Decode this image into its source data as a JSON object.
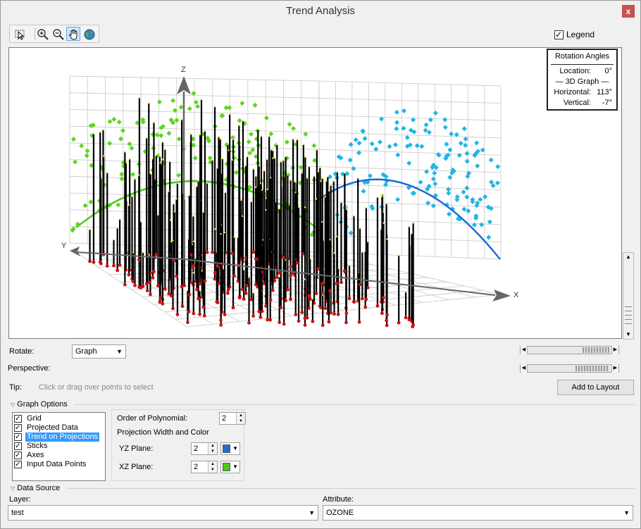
{
  "window": {
    "title": "Trend Analysis",
    "close_label": "x"
  },
  "toolbar": {
    "tools": [
      {
        "name": "select-tool",
        "icon": "pointer-icon"
      },
      {
        "name": "zoom-in-tool",
        "icon": "zoom-in-icon"
      },
      {
        "name": "zoom-out-tool",
        "icon": "zoom-out-icon"
      },
      {
        "name": "pan-tool",
        "icon": "hand-icon",
        "active": true
      },
      {
        "name": "full-extent-tool",
        "icon": "globe-icon"
      }
    ]
  },
  "legend": {
    "label": "Legend",
    "checked": true
  },
  "plot": {
    "axis_labels": {
      "x": "X",
      "y": "Y",
      "z": "Z"
    },
    "colors": {
      "yz_trend": "#1a6fd6",
      "xz_trend": "#4ec91a",
      "yz_points": "#1fb6e6",
      "xz_points": "#5ad81c",
      "sticks": "#000000",
      "input_points": "#cc1111"
    }
  },
  "rotation": {
    "title": "Rotation Angles",
    "location_label": "Location:",
    "location_value": "0°",
    "graph_label": "— 3D Graph —",
    "horizontal_label": "Horizontal:",
    "horizontal_value": "113°",
    "vertical_label": "Vertical:",
    "vertical_value": "-7°"
  },
  "controls": {
    "rotate_label": "Rotate:",
    "rotate_value": "Graph",
    "perspective_label": "Perspective:",
    "tip_label": "Tip:",
    "tip_text": "Click or drag over points to select",
    "add_to_layout": "Add to Layout"
  },
  "graph_options": {
    "header": "Graph Options",
    "items": [
      {
        "label": "Grid",
        "checked": true,
        "selected": false
      },
      {
        "label": "Projected Data",
        "checked": true,
        "selected": false
      },
      {
        "label": "Trend on Projections",
        "checked": true,
        "selected": true
      },
      {
        "label": "Sticks",
        "checked": true,
        "selected": false
      },
      {
        "label": "Axes",
        "checked": true,
        "selected": false
      },
      {
        "label": "Input Data Points",
        "checked": true,
        "selected": false
      }
    ],
    "order_label": "Order of Polynomial:",
    "order_value": "2",
    "projection_header": "Projection Width and Color",
    "yz_label": "YZ Plane:",
    "yz_width": "2",
    "yz_color": "#1a6fd6",
    "xz_label": "XZ Plane:",
    "xz_width": "2",
    "xz_color": "#4ec91a"
  },
  "data_source": {
    "header": "Data Source",
    "layer_label": "Layer:",
    "layer_value": "test",
    "attribute_label": "Attribute:",
    "attribute_value": "OZONE"
  }
}
